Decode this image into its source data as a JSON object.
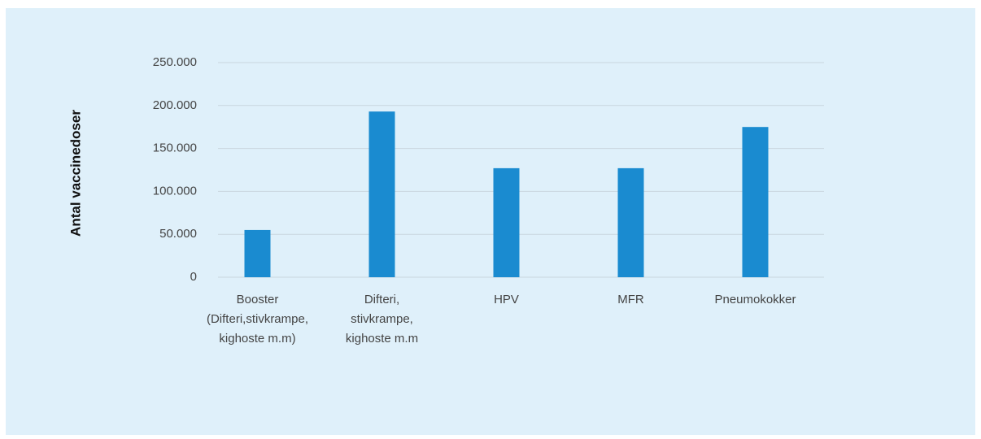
{
  "chart_data": {
    "type": "bar",
    "y_label": "Antal vaccinedoser",
    "categories": [
      "Booster\n(Difteri,stivkrampe,\nkighoste m.m)",
      "Difteri,\nstivkrampe,\nkighoste m.m",
      "HPV",
      "MFR",
      "Pneumokokker"
    ],
    "values": [
      55000,
      193000,
      127000,
      127000,
      175000
    ],
    "color": "#1a8bd0",
    "ylim": [
      0,
      250000
    ],
    "yticks": [
      0,
      {
        "value": 50000,
        "label": "50.000"
      },
      {
        "value": 100000,
        "label": "100.000"
      },
      {
        "value": 150000,
        "label": "150.000"
      },
      {
        "value": 200000,
        "label": "200.000"
      },
      {
        "value": 250000,
        "label": "250.000"
      }
    ],
    "grid": true
  }
}
